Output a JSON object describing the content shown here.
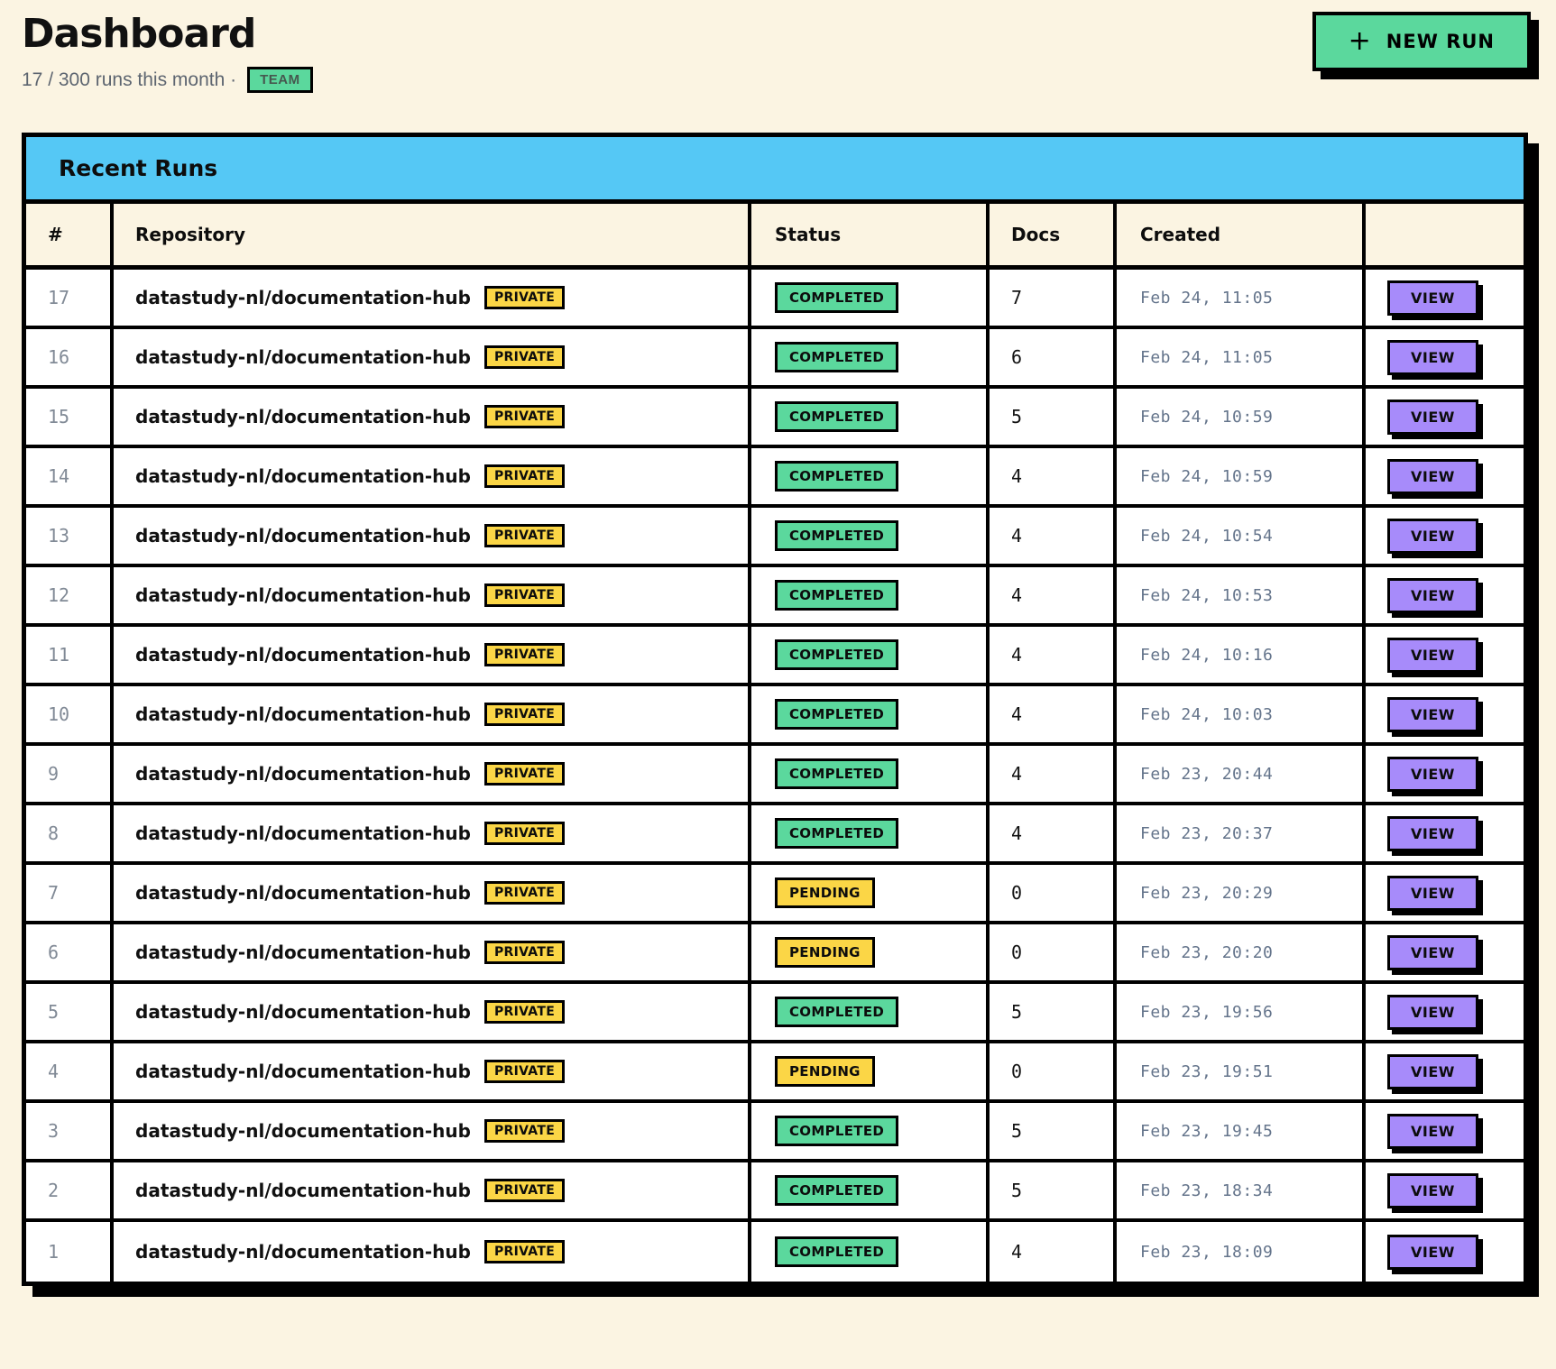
{
  "page": {
    "title": "Dashboard",
    "subtitle": "17 / 300 runs this month ·",
    "team_badge": "TEAM",
    "new_run": {
      "icon": "+",
      "label": "NEW RUN"
    }
  },
  "colors": {
    "background": "#fbf4e2",
    "table_header_blue": "#55c8f5",
    "accent_green": "#5bd89d",
    "accent_yellow": "#fbd646",
    "accent_purple": "#a78bfa",
    "muted_text": "#64748b"
  },
  "table": {
    "title": "Recent Runs",
    "columns": [
      "#",
      "Repository",
      "Status",
      "Docs",
      "Created",
      ""
    ],
    "view_label": "VIEW",
    "rows": [
      {
        "num": "17",
        "repo": "datastudy-nl/documentation-hub",
        "visibility": "PRIVATE",
        "status": "COMPLETED",
        "docs": "7",
        "created": "Feb 24, 11:05"
      },
      {
        "num": "16",
        "repo": "datastudy-nl/documentation-hub",
        "visibility": "PRIVATE",
        "status": "COMPLETED",
        "docs": "6",
        "created": "Feb 24, 11:05"
      },
      {
        "num": "15",
        "repo": "datastudy-nl/documentation-hub",
        "visibility": "PRIVATE",
        "status": "COMPLETED",
        "docs": "5",
        "created": "Feb 24, 10:59"
      },
      {
        "num": "14",
        "repo": "datastudy-nl/documentation-hub",
        "visibility": "PRIVATE",
        "status": "COMPLETED",
        "docs": "4",
        "created": "Feb 24, 10:59"
      },
      {
        "num": "13",
        "repo": "datastudy-nl/documentation-hub",
        "visibility": "PRIVATE",
        "status": "COMPLETED",
        "docs": "4",
        "created": "Feb 24, 10:54"
      },
      {
        "num": "12",
        "repo": "datastudy-nl/documentation-hub",
        "visibility": "PRIVATE",
        "status": "COMPLETED",
        "docs": "4",
        "created": "Feb 24, 10:53"
      },
      {
        "num": "11",
        "repo": "datastudy-nl/documentation-hub",
        "visibility": "PRIVATE",
        "status": "COMPLETED",
        "docs": "4",
        "created": "Feb 24, 10:16"
      },
      {
        "num": "10",
        "repo": "datastudy-nl/documentation-hub",
        "visibility": "PRIVATE",
        "status": "COMPLETED",
        "docs": "4",
        "created": "Feb 24, 10:03"
      },
      {
        "num": "9",
        "repo": "datastudy-nl/documentation-hub",
        "visibility": "PRIVATE",
        "status": "COMPLETED",
        "docs": "4",
        "created": "Feb 23, 20:44"
      },
      {
        "num": "8",
        "repo": "datastudy-nl/documentation-hub",
        "visibility": "PRIVATE",
        "status": "COMPLETED",
        "docs": "4",
        "created": "Feb 23, 20:37"
      },
      {
        "num": "7",
        "repo": "datastudy-nl/documentation-hub",
        "visibility": "PRIVATE",
        "status": "PENDING",
        "docs": "0",
        "created": "Feb 23, 20:29"
      },
      {
        "num": "6",
        "repo": "datastudy-nl/documentation-hub",
        "visibility": "PRIVATE",
        "status": "PENDING",
        "docs": "0",
        "created": "Feb 23, 20:20"
      },
      {
        "num": "5",
        "repo": "datastudy-nl/documentation-hub",
        "visibility": "PRIVATE",
        "status": "COMPLETED",
        "docs": "5",
        "created": "Feb 23, 19:56"
      },
      {
        "num": "4",
        "repo": "datastudy-nl/documentation-hub",
        "visibility": "PRIVATE",
        "status": "PENDING",
        "docs": "0",
        "created": "Feb 23, 19:51"
      },
      {
        "num": "3",
        "repo": "datastudy-nl/documentation-hub",
        "visibility": "PRIVATE",
        "status": "COMPLETED",
        "docs": "5",
        "created": "Feb 23, 19:45"
      },
      {
        "num": "2",
        "repo": "datastudy-nl/documentation-hub",
        "visibility": "PRIVATE",
        "status": "COMPLETED",
        "docs": "5",
        "created": "Feb 23, 18:34"
      },
      {
        "num": "1",
        "repo": "datastudy-nl/documentation-hub",
        "visibility": "PRIVATE",
        "status": "COMPLETED",
        "docs": "4",
        "created": "Feb 23, 18:09"
      }
    ]
  }
}
